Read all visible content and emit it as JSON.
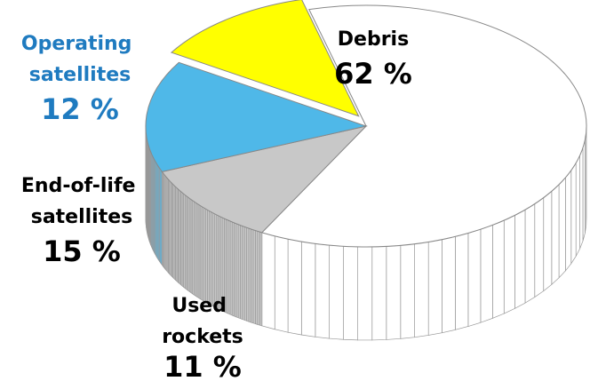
{
  "chart_data": {
    "type": "pie",
    "categories": [
      "Debris",
      "Used rockets",
      "End-of-life satellites",
      "Operating satellites"
    ],
    "values": [
      62,
      11,
      15,
      12
    ],
    "value_labels": [
      "62 %",
      "11 %",
      "15 %",
      "12 %"
    ],
    "colors": [
      "#ffffff",
      "#c8c8c8",
      "#4fb8e8",
      "#ffff00"
    ],
    "label_colors": [
      "#000000",
      "#000000",
      "#000000",
      "#1f7bc0"
    ],
    "exploded": [
      false,
      false,
      false,
      true
    ]
  }
}
